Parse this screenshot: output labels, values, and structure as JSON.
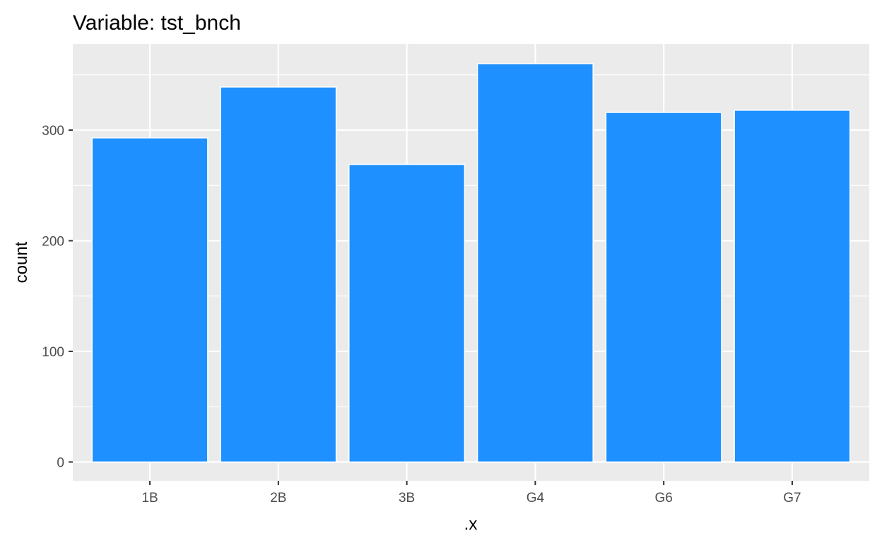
{
  "chart_data": {
    "type": "bar",
    "title": "Variable: tst_bnch",
    "xlabel": ".x",
    "ylabel": "count",
    "categories": [
      "1B",
      "2B",
      "3B",
      "G4",
      "G6",
      "G7"
    ],
    "values": [
      293,
      339,
      269,
      360,
      316,
      318
    ],
    "ylim": [
      -17,
      378
    ],
    "yticks": [
      0,
      100,
      200,
      300
    ],
    "grid": true,
    "bar_color": "#1E90FF",
    "panel_color": "#EBEBEB",
    "legend": "none"
  }
}
